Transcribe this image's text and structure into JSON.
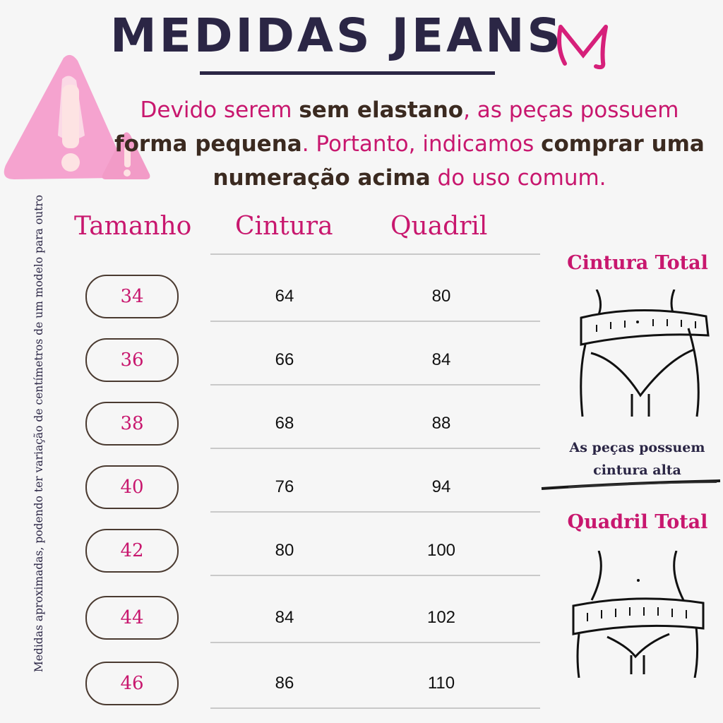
{
  "title": "MEDIDAS JEANS",
  "logo": {
    "letter": "M",
    "color": "#d6207a"
  },
  "notice": {
    "p1": "Devido serem ",
    "b1": "sem elastano",
    "p2": ", as peças possuem ",
    "b2": "forma pequena",
    "p3": ". Portanto, indicamos ",
    "b3": "comprar uma numeração acima",
    "p4": " do uso comum."
  },
  "warning_icon": "warning-triangle-icon",
  "side_note": "Medidas aproximadas, podendo ter variação de centímetros de um modelo  para outro",
  "table": {
    "headers": [
      "Tamanho",
      "Cintura",
      "Quadril"
    ],
    "rows": [
      {
        "size": "34",
        "cintura": "64",
        "quadril": "80"
      },
      {
        "size": "36",
        "cintura": "66",
        "quadril": "84"
      },
      {
        "size": "38",
        "cintura": "68",
        "quadril": "88"
      },
      {
        "size": "40",
        "cintura": "76",
        "quadril": "94"
      },
      {
        "size": "42",
        "cintura": "80",
        "quadril": "100"
      },
      {
        "size": "44",
        "cintura": "84",
        "quadril": "102"
      },
      {
        "size": "46",
        "cintura": "86",
        "quadril": "110"
      }
    ]
  },
  "right": {
    "cintura_title": "Cintura Total",
    "high_waist_note": "As peças possuem cintura alta",
    "quadril_title": "Quadril Total"
  },
  "colors": {
    "accent": "#c8176e",
    "dark": "#2b2645",
    "background": "#f6f6f6"
  }
}
